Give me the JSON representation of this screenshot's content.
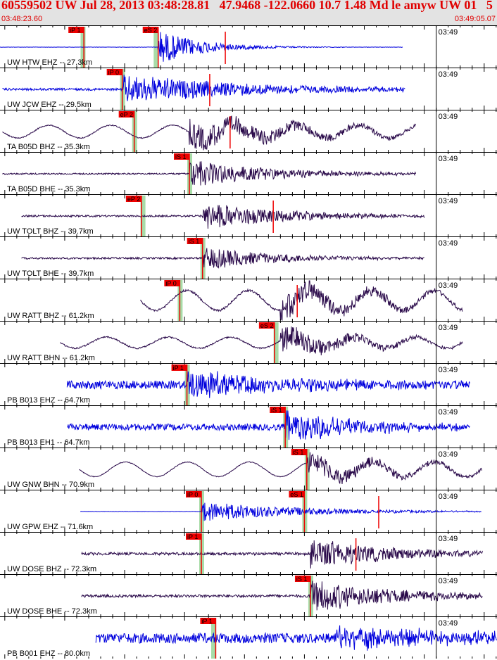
{
  "header": {
    "title": "60559502 UW Jul 28, 2013 03:48:28.81   47.9468 -122.0660 10.7 1.48 Md le amyw UW 01   5",
    "start_time": "03:48:23.60",
    "end_time": "03:49:05.07"
  },
  "colors": {
    "header_bg": "#e3e3e3",
    "header_text": "#e00000",
    "blue_trace": "#0000dd",
    "purple_trace": "#2a0a4a",
    "pick_flag": "#ee0000",
    "green_window": "#a8dca8",
    "grid": "#000000"
  },
  "chart_data": {
    "type": "line",
    "time_axis": {
      "start": "03:48:23.60",
      "end": "03:49:05.07",
      "minute_label": "03:49"
    },
    "traces": [
      {
        "label": "UW HTW EHZ -- 27.3km",
        "color": "blue",
        "picks": [
          {
            "text": "iP 1",
            "t": 7.0,
            "win": 6.9
          },
          {
            "text": "eS 2",
            "t": 13.2,
            "win": 13.0
          }
        ],
        "signal": {
          "start": 0.0,
          "end": 33.6,
          "onset": 13.2,
          "amp": 0.95,
          "noise": 0.015,
          "decay": 6,
          "low": 0,
          "spike": 18.8
        }
      },
      {
        "label": "UW JCW EHZ -- 29.5km",
        "color": "blue",
        "picks": [
          {
            "text": "iP 0",
            "t": 10.2,
            "win": 10.2
          }
        ],
        "signal": {
          "start": 0.2,
          "end": 33.8,
          "onset": 10.3,
          "amp": 0.8,
          "noise": 0.12,
          "decay": 18,
          "low": 0,
          "spike": 17.5
        }
      },
      {
        "label": "TA B05D BHZ -- 35.3km",
        "color": "purple",
        "picks": [
          {
            "text": "eP 2",
            "t": 11.2,
            "win": 11.2
          }
        ],
        "signal": {
          "start": 0.2,
          "end": 34.7,
          "onset": 15.8,
          "amp": 0.8,
          "noise": 0.06,
          "decay": 14,
          "low": 0.35,
          "spike": 19.2
        }
      },
      {
        "label": "TA B05D BHE -- 35.3km",
        "color": "purple",
        "picks": [
          {
            "text": "iS 1",
            "t": 15.8,
            "win": 15.8
          }
        ],
        "signal": {
          "start": 0.2,
          "end": 34.7,
          "onset": 15.8,
          "amp": 0.75,
          "noise": 0.08,
          "decay": 12,
          "low": 0,
          "spike": null
        }
      },
      {
        "label": "UW TOLT BHZ -- 39.7km",
        "color": "purple",
        "picks": [
          {
            "text": "eP 2",
            "t": 11.8,
            "win": 11.9
          }
        ],
        "signal": {
          "start": 1.8,
          "end": 35.4,
          "onset": 16.9,
          "amp": 0.75,
          "noise": 0.1,
          "decay": 12,
          "low": 0,
          "spike": 22.8
        }
      },
      {
        "label": "UW TOLT BHE -- 39.7km",
        "color": "purple",
        "picks": [
          {
            "text": "iS 1",
            "t": 16.9,
            "win": 16.9
          }
        ],
        "signal": {
          "start": 1.8,
          "end": 35.4,
          "onset": 16.9,
          "amp": 0.65,
          "noise": 0.1,
          "decay": 10,
          "low": 0,
          "spike": null
        }
      },
      {
        "label": "UW RATT BHZ -- 61.2km",
        "color": "purple",
        "picks": [
          {
            "text": "iP 0",
            "t": 15.0,
            "win": 15.0
          }
        ],
        "signal": {
          "start": 11.7,
          "end": 38.6,
          "onset": 23.4,
          "amp": 0.75,
          "noise": 0.12,
          "decay": 12,
          "low": 0.55,
          "spike": 24.8
        }
      },
      {
        "label": "UW RATT BHN -- 61.2km",
        "color": "purple",
        "picks": [
          {
            "text": "eS 2",
            "t": 22.9,
            "win": 23.0
          }
        ],
        "signal": {
          "start": 5.0,
          "end": 38.6,
          "onset": 23.4,
          "amp": 0.7,
          "noise": 0.08,
          "decay": 10,
          "low": 0.3,
          "spike": null
        }
      },
      {
        "label": "PB B013 EHZ -- 64.7km",
        "color": "blue",
        "picks": [
          {
            "text": "iP 1",
            "t": 15.6,
            "win": 15.6
          }
        ],
        "signal": {
          "start": 5.6,
          "end": 39.2,
          "onset": 15.6,
          "amp": 0.75,
          "noise": 0.45,
          "decay": 14,
          "low": 0,
          "spike": null
        }
      },
      {
        "label": "PB B013 EH1 -- 64.7km",
        "color": "blue",
        "picks": [
          {
            "text": "iS 1",
            "t": 23.8,
            "win": 23.8
          }
        ],
        "signal": {
          "start": 5.6,
          "end": 39.2,
          "onset": 23.8,
          "amp": 0.9,
          "noise": 0.35,
          "decay": 10,
          "low": 0,
          "spike": null
        }
      },
      {
        "label": "UW GNW BHN -- 70.9km",
        "color": "purple",
        "picks": [
          {
            "text": "iS 1",
            "t": 25.6,
            "win": 25.6
          }
        ],
        "signal": {
          "start": 6.6,
          "end": 40.2,
          "onset": 25.6,
          "amp": 0.6,
          "noise": 0.04,
          "decay": 12,
          "low": 0.4,
          "spike": null
        }
      },
      {
        "label": "UW GPW EHZ -- 71.6km",
        "color": "blue",
        "picks": [
          {
            "text": "iP 0",
            "t": 16.8,
            "win": 16.8
          },
          {
            "text": "eS 1",
            "t": 25.4,
            "win": 25.4
          }
        ],
        "signal": {
          "start": 6.7,
          "end": 40.2,
          "onset": 16.8,
          "amp": 0.55,
          "noise": 0.015,
          "decay": 14,
          "low": 0,
          "spike": 31.6
        }
      },
      {
        "label": "UW DOSE BHZ -- 72.3km",
        "color": "purple",
        "picks": [
          {
            "text": "iP 1",
            "t": 16.8,
            "win": 16.8
          }
        ],
        "signal": {
          "start": 6.8,
          "end": 40.3,
          "onset": 25.9,
          "amp": 0.85,
          "noise": 0.15,
          "decay": 12,
          "low": 0,
          "spike": 29.7
        }
      },
      {
        "label": "UW DOSE BHE -- 72.3km",
        "color": "purple",
        "picks": [
          {
            "text": "iS 1",
            "t": 25.9,
            "win": 25.9
          }
        ],
        "signal": {
          "start": 6.8,
          "end": 40.3,
          "onset": 25.9,
          "amp": 0.9,
          "noise": 0.15,
          "decay": 12,
          "low": 0,
          "spike": null
        }
      },
      {
        "label": "PB B001 EHZ -- 80.0km",
        "color": "blue",
        "picks": [
          {
            "text": "iP 1",
            "t": 18.0,
            "win": 17.8
          }
        ],
        "signal": {
          "start": 8.0,
          "end": 41.5,
          "onset": 28.0,
          "amp": 0.55,
          "noise": 0.55,
          "decay": 20,
          "low": 0,
          "spike": null
        }
      }
    ]
  }
}
